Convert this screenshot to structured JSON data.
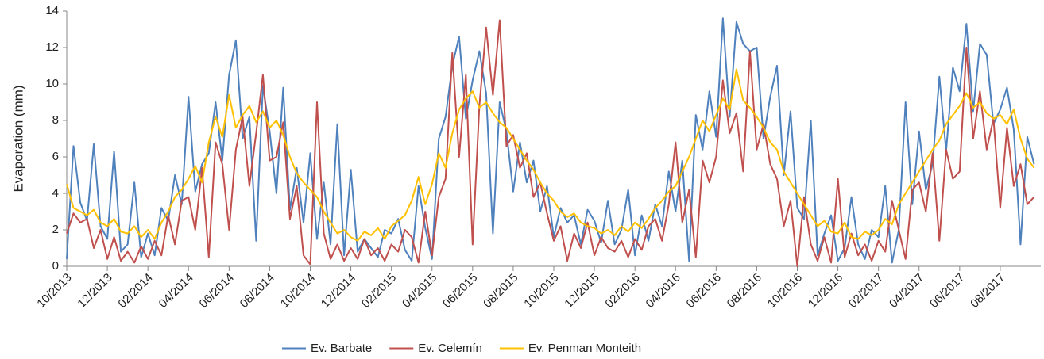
{
  "chart_data": {
    "type": "line",
    "y_label": "Evaporation (mm)",
    "categories": [
      "10/2013",
      null,
      null,
      null,
      null,
      null,
      "12/2013",
      null,
      null,
      null,
      null,
      null,
      "02/2014",
      null,
      null,
      null,
      null,
      null,
      "04/2014",
      null,
      null,
      null,
      null,
      null,
      "06/2014",
      null,
      null,
      null,
      null,
      null,
      "08/2014",
      null,
      null,
      null,
      null,
      null,
      "10/2014",
      null,
      null,
      null,
      null,
      null,
      "12/2014",
      null,
      null,
      null,
      null,
      null,
      "02/2015",
      null,
      null,
      null,
      null,
      null,
      "04/2015",
      null,
      null,
      null,
      null,
      null,
      "06/2015",
      null,
      null,
      null,
      null,
      null,
      "08/2015",
      null,
      null,
      null,
      null,
      null,
      "10/2015",
      null,
      null,
      null,
      null,
      null,
      "12/2015",
      null,
      null,
      null,
      null,
      null,
      "02/2016",
      null,
      null,
      null,
      null,
      null,
      "04/2016",
      null,
      null,
      null,
      null,
      null,
      "06/2016",
      null,
      null,
      null,
      null,
      null,
      "08/2016",
      null,
      null,
      null,
      null,
      null,
      "10/2016",
      null,
      null,
      null,
      null,
      null,
      "12/2016",
      null,
      null,
      null,
      null,
      null,
      "02/2017",
      null,
      null,
      null,
      null,
      null,
      "04/2017",
      null,
      null,
      null,
      null,
      null,
      "06/2017",
      null,
      null,
      null,
      null,
      null,
      "08/2017",
      null,
      null,
      null,
      null,
      null
    ],
    "series": [
      {
        "name": "Ev. Barbate",
        "color": "#4f81bd",
        "values": [
          0.4,
          6.6,
          3.5,
          2.5,
          6.7,
          2.2,
          1.5,
          6.3,
          0.8,
          1.2,
          4.6,
          0.5,
          1.8,
          0.6,
          3.2,
          2.5,
          5.0,
          3.4,
          9.3,
          4.1,
          5.6,
          6.2,
          9.0,
          5.8,
          10.5,
          12.4,
          7.0,
          8.2,
          1.4,
          9.9,
          7.4,
          4.0,
          9.8,
          3.1,
          5.4,
          2.4,
          6.2,
          1.5,
          4.6,
          1.2,
          7.8,
          0.6,
          5.3,
          0.8,
          1.5,
          1.0,
          0.5,
          2.0,
          1.8,
          2.6,
          0.9,
          0.3,
          4.4,
          2.1,
          0.4,
          7.0,
          8.2,
          11.0,
          12.6,
          8.1,
          10.2,
          11.8,
          9.5,
          1.8,
          9.0,
          7.4,
          4.1,
          6.8,
          4.6,
          5.8,
          3.0,
          4.4,
          1.6,
          3.2,
          2.4,
          2.8,
          1.2,
          3.1,
          2.5,
          1.3,
          3.6,
          1.2,
          2.0,
          4.2,
          0.6,
          2.8,
          1.4,
          3.4,
          2.2,
          5.2,
          3.0,
          5.8,
          0.3,
          8.3,
          6.4,
          9.6,
          7.1,
          13.6,
          8.2,
          13.4,
          12.2,
          11.8,
          12.0,
          7.0,
          9.3,
          11.0,
          5.0,
          8.5,
          3.2,
          2.6,
          8.0,
          0.6,
          1.8,
          2.8,
          0.3,
          1.0,
          3.8,
          1.2,
          0.4,
          2.0,
          1.6,
          4.4,
          0.2,
          2.0,
          9.0,
          3.4,
          7.4,
          4.2,
          5.6,
          10.4,
          6.3,
          10.9,
          9.6,
          13.3,
          8.5,
          12.2,
          11.6,
          7.8,
          8.6,
          9.8,
          7.5,
          1.2,
          7.1,
          5.6
        ]
      },
      {
        "name": "Ev. Celemín",
        "color": "#c0504d",
        "values": [
          1.8,
          2.9,
          2.4,
          2.6,
          1.0,
          2.0,
          0.4,
          1.6,
          0.3,
          0.8,
          0.2,
          1.1,
          0.4,
          1.4,
          0.6,
          2.8,
          1.2,
          3.6,
          3.8,
          2.0,
          5.4,
          0.5,
          6.8,
          5.6,
          2.0,
          6.4,
          8.2,
          4.4,
          7.3,
          10.5,
          5.8,
          6.0,
          7.9,
          2.6,
          4.4,
          0.6,
          0.1,
          9.0,
          1.8,
          0.4,
          1.2,
          0.3,
          1.0,
          0.4,
          1.5,
          0.6,
          1.0,
          0.3,
          1.2,
          0.8,
          2.0,
          1.6,
          0.2,
          3.0,
          0.6,
          3.8,
          4.8,
          11.7,
          6.0,
          10.5,
          1.2,
          8.8,
          13.1,
          9.4,
          13.5,
          6.6,
          7.2,
          5.4,
          6.2,
          3.8,
          4.6,
          2.9,
          1.4,
          2.2,
          0.3,
          1.8,
          1.0,
          2.4,
          0.6,
          1.6,
          1.0,
          0.8,
          1.4,
          0.5,
          1.5,
          0.9,
          2.2,
          2.6,
          1.4,
          3.4,
          6.8,
          2.4,
          4.2,
          0.5,
          5.8,
          4.6,
          6.0,
          10.2,
          7.3,
          8.4,
          5.2,
          11.8,
          6.4,
          7.8,
          5.6,
          4.8,
          2.2,
          3.6,
          0.0,
          3.8,
          1.2,
          0.3,
          1.6,
          0.2,
          4.8,
          0.5,
          1.8,
          0.6,
          1.2,
          0.3,
          1.4,
          0.8,
          3.6,
          2.0,
          0.4,
          4.2,
          4.6,
          3.0,
          6.2,
          1.4,
          6.4,
          4.8,
          5.2,
          12.0,
          7.0,
          9.6,
          6.4,
          8.1,
          3.2,
          7.6,
          4.4,
          5.6,
          3.4,
          3.8
        ]
      },
      {
        "name": "Ev. Penman Monteith",
        "color": "#ffc000",
        "values": [
          4.5,
          3.2,
          3.0,
          2.8,
          3.1,
          2.4,
          2.2,
          2.6,
          1.9,
          1.8,
          2.2,
          1.6,
          2.0,
          1.5,
          2.4,
          3.0,
          3.8,
          4.2,
          4.8,
          5.5,
          4.6,
          6.8,
          8.2,
          7.1,
          9.4,
          7.6,
          8.3,
          8.8,
          7.9,
          8.5,
          7.6,
          8.0,
          7.2,
          6.0,
          5.1,
          4.6,
          4.2,
          3.8,
          3.0,
          2.4,
          1.8,
          2.0,
          1.6,
          1.4,
          1.9,
          1.7,
          2.1,
          1.5,
          2.2,
          2.5,
          2.8,
          3.6,
          4.9,
          3.4,
          4.5,
          6.2,
          5.4,
          7.3,
          8.6,
          9.2,
          9.6,
          8.7,
          9.0,
          8.4,
          7.9,
          7.6,
          7.0,
          6.4,
          5.8,
          5.3,
          4.6,
          4.0,
          3.6,
          3.0,
          2.7,
          2.9,
          2.4,
          2.2,
          2.1,
          1.8,
          2.0,
          1.7,
          2.2,
          1.9,
          2.4,
          2.1,
          2.6,
          3.2,
          3.6,
          4.1,
          4.4,
          5.2,
          6.0,
          7.0,
          8.0,
          7.4,
          8.3,
          9.2,
          8.6,
          10.8,
          9.1,
          8.7,
          8.2,
          7.6,
          6.8,
          6.4,
          5.2,
          4.6,
          4.0,
          3.4,
          2.8,
          2.2,
          2.5,
          1.9,
          1.8,
          2.4,
          1.6,
          1.5,
          1.9,
          1.7,
          2.0,
          2.6,
          2.3,
          3.4,
          4.0,
          4.6,
          5.2,
          5.8,
          6.4,
          6.9,
          7.8,
          8.3,
          8.8,
          9.5,
          8.7,
          9.0,
          8.4,
          8.1,
          8.3,
          7.8,
          8.6,
          7.0,
          5.9,
          5.4
        ]
      }
    ],
    "ylim": [
      0,
      14
    ],
    "yticks": [
      0,
      2,
      4,
      6,
      8,
      10,
      12,
      14
    ],
    "grid": false,
    "legend": "bottom"
  }
}
